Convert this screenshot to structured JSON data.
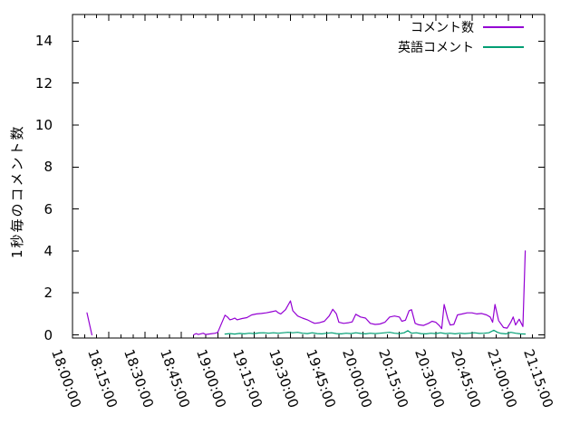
{
  "chart_data": {
    "type": "line",
    "title": "",
    "xlabel": "",
    "ylabel": "1秒毎のコメント数",
    "grid": false,
    "legend_position": "top-right",
    "x_tick_labels": [
      "18:00:00",
      "18:15:00",
      "18:30:00",
      "18:45:00",
      "19:00:00",
      "19:15:00",
      "19:30:00",
      "19:45:00",
      "20:00:00",
      "20:15:00",
      "20:30:00",
      "20:45:00",
      "21:00:00",
      "21:15:00"
    ],
    "x_tick_minutes": [
      0,
      15,
      30,
      45,
      60,
      75,
      90,
      105,
      120,
      135,
      150,
      165,
      180,
      195
    ],
    "minor_tick_step_minutes": 5,
    "y_ticks": [
      0,
      2,
      4,
      6,
      8,
      10,
      12,
      14
    ],
    "xlim_minutes": [
      0,
      195
    ],
    "ylim": [
      -0.15,
      15.27
    ],
    "axis_color": "#000000",
    "background_color": "#ffffff",
    "series": [
      {
        "name": "コメント数",
        "color": "#9400d3",
        "segments": [
          [
            [
              6,
              1.05
            ],
            [
              8,
              0
            ]
          ],
          [
            [
              50,
              0
            ],
            [
              51,
              0.06
            ],
            [
              52,
              0.02
            ],
            [
              54,
              0.08
            ],
            [
              55,
              0.02
            ],
            [
              57,
              0.05
            ],
            [
              59,
              0.08
            ],
            [
              60,
              0.12
            ],
            [
              61,
              0.4
            ],
            [
              63,
              0.94
            ],
            [
              64,
              0.85
            ],
            [
              65,
              0.72
            ],
            [
              66,
              0.75
            ],
            [
              67,
              0.8
            ],
            [
              68,
              0.72
            ],
            [
              70,
              0.78
            ],
            [
              72,
              0.82
            ],
            [
              74,
              0.95
            ],
            [
              76,
              1.0
            ],
            [
              78,
              1.02
            ],
            [
              80,
              1.05
            ],
            [
              82,
              1.1
            ],
            [
              84,
              1.15
            ],
            [
              85,
              1.05
            ],
            [
              86,
              1.0
            ],
            [
              88,
              1.2
            ],
            [
              90,
              1.62
            ],
            [
              91,
              1.15
            ],
            [
              93,
              0.9
            ],
            [
              95,
              0.8
            ],
            [
              97,
              0.72
            ],
            [
              99,
              0.6
            ],
            [
              100,
              0.55
            ],
            [
              102,
              0.58
            ],
            [
              104,
              0.65
            ],
            [
              106,
              0.9
            ],
            [
              107.5,
              1.22
            ],
            [
              109,
              1.0
            ],
            [
              110,
              0.6
            ],
            [
              112,
              0.55
            ],
            [
              114,
              0.58
            ],
            [
              115.5,
              0.62
            ],
            [
              117,
              0.98
            ],
            [
              119,
              0.85
            ],
            [
              121,
              0.8
            ],
            [
              123,
              0.55
            ],
            [
              125,
              0.5
            ],
            [
              127,
              0.52
            ],
            [
              129,
              0.6
            ],
            [
              131,
              0.85
            ],
            [
              133,
              0.9
            ],
            [
              135,
              0.85
            ],
            [
              136,
              0.65
            ],
            [
              137.5,
              0.7
            ],
            [
              139,
              1.15
            ],
            [
              140,
              1.2
            ],
            [
              141.5,
              0.55
            ],
            [
              143,
              0.48
            ],
            [
              145,
              0.45
            ],
            [
              147,
              0.55
            ],
            [
              148.5,
              0.65
            ],
            [
              150,
              0.6
            ],
            [
              151.5,
              0.44
            ],
            [
              152.5,
              0.3
            ],
            [
              153.5,
              1.45
            ],
            [
              155,
              0.77
            ],
            [
              156,
              0.47
            ],
            [
              157.5,
              0.5
            ],
            [
              159,
              0.95
            ],
            [
              161,
              1.0
            ],
            [
              163,
              1.05
            ],
            [
              165,
              1.05
            ],
            [
              167,
              1.0
            ],
            [
              169,
              1.02
            ],
            [
              171,
              0.95
            ],
            [
              172.5,
              0.85
            ],
            [
              173.5,
              0.6
            ],
            [
              174.5,
              1.45
            ],
            [
              176,
              0.68
            ],
            [
              178,
              0.35
            ],
            [
              179.5,
              0.32
            ],
            [
              181,
              0.6
            ],
            [
              182,
              0.85
            ],
            [
              183,
              0.47
            ],
            [
              184.5,
              0.75
            ],
            [
              186,
              0.4
            ],
            [
              187,
              4.0
            ]
          ]
        ]
      },
      {
        "name": "英語コメント",
        "color": "#009e73",
        "segments": [
          [
            [
              63,
              0.04
            ],
            [
              65,
              0.06
            ],
            [
              67,
              0.04
            ],
            [
              69,
              0.07
            ],
            [
              71,
              0.05
            ],
            [
              73,
              0.08
            ],
            [
              75,
              0.06
            ],
            [
              77,
              0.09
            ],
            [
              79,
              0.1
            ],
            [
              81,
              0.08
            ],
            [
              83,
              0.1
            ],
            [
              85,
              0.08
            ],
            [
              87,
              0.1
            ],
            [
              89,
              0.12
            ],
            [
              91,
              0.1
            ],
            [
              93,
              0.12
            ],
            [
              95,
              0.08
            ],
            [
              97,
              0.06
            ],
            [
              99,
              0.1
            ],
            [
              101,
              0.06
            ],
            [
              103,
              0.05
            ],
            [
              105,
              0.08
            ],
            [
              107,
              0.1
            ],
            [
              109,
              0.06
            ],
            [
              111,
              0.05
            ],
            [
              113,
              0.08
            ],
            [
              115,
              0.06
            ],
            [
              117,
              0.1
            ],
            [
              119,
              0.07
            ],
            [
              121,
              0.05
            ],
            [
              123,
              0.08
            ],
            [
              125,
              0.06
            ],
            [
              127,
              0.08
            ],
            [
              129,
              0.1
            ],
            [
              131,
              0.12
            ],
            [
              133,
              0.08
            ],
            [
              135,
              0.06
            ],
            [
              137,
              0.1
            ],
            [
              138.5,
              0.2
            ],
            [
              140,
              0.08
            ],
            [
              142,
              0.1
            ],
            [
              144,
              0.06
            ],
            [
              146,
              0.05
            ],
            [
              148,
              0.08
            ],
            [
              150,
              0.06
            ],
            [
              152,
              0.1
            ],
            [
              154,
              0.06
            ],
            [
              156,
              0.08
            ],
            [
              158,
              0.05
            ],
            [
              160,
              0.08
            ],
            [
              162,
              0.06
            ],
            [
              164,
              0.08
            ],
            [
              166,
              0.1
            ],
            [
              168,
              0.07
            ],
            [
              170,
              0.08
            ],
            [
              172,
              0.1
            ],
            [
              174,
              0.22
            ],
            [
              175.5,
              0.12
            ],
            [
              177,
              0.07
            ],
            [
              179,
              0.05
            ],
            [
              181,
              0.12
            ],
            [
              183,
              0.08
            ],
            [
              185,
              0.05
            ],
            [
              187,
              0.04
            ]
          ]
        ]
      }
    ]
  }
}
